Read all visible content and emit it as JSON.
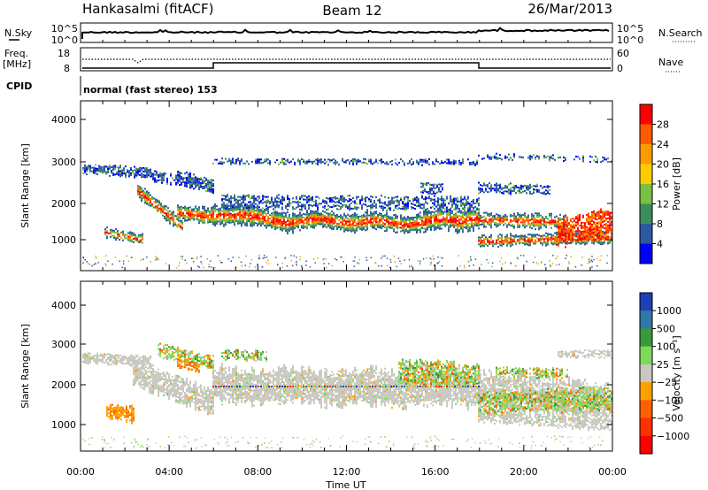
{
  "header": {
    "station": "Hankasalmi (fitACF)",
    "beam": "Beam 12",
    "date": "26/Mar/2013"
  },
  "noise_panel": {
    "left_label": "N.Sky",
    "right_label": "N.Search",
    "left_ticks": [
      "10^5",
      "10^0"
    ],
    "right_ticks": [
      "10^5",
      "10^0"
    ]
  },
  "freq_panel": {
    "left_label_top": "Freq.",
    "left_label_bottom": "[MHz]",
    "right_label": "Nave",
    "left_ticks": [
      "18",
      "8"
    ],
    "right_ticks": [
      "60",
      "0"
    ]
  },
  "cpid": {
    "label": "CPID",
    "text": "normal (fast stereo) 153"
  },
  "power_panel": {
    "ylabel": "Slant Range [km]",
    "cbar_label": "Power [dB]",
    "cbar_ticks": [
      "28",
      "24",
      "20",
      "16",
      "12",
      "8",
      "4"
    ],
    "cbar_colors": [
      "#ff0000",
      "#ff5a00",
      "#ff9a00",
      "#ffcc00",
      "#7ac143",
      "#3c8d5c",
      "#2c5aa0",
      "#0000ff"
    ]
  },
  "velocity_panel": {
    "ylabel": "Slant Range [km]",
    "cbar_label": "Velocity [m s⁻¹]",
    "cbar_ticks": [
      "1000",
      "500",
      "100",
      "25",
      "−25",
      "−100",
      "−500",
      "−1000"
    ],
    "cbar_colors": [
      "#1e40b4",
      "#2f78a8",
      "#3a9a3a",
      "#7ed957",
      "#c8c8c0",
      "#ffa000",
      "#ff6000",
      "#ff3000",
      "#ff0000"
    ]
  },
  "y_ticks": [
    "4000",
    "3000",
    "2000",
    "1000"
  ],
  "x_ticks": [
    "00:00",
    "04:00",
    "08:00",
    "12:00",
    "16:00",
    "20:00",
    "00:00"
  ],
  "xlabel": "Time UT",
  "chart_data": {
    "type": "heatmap",
    "x_range_hours": [
      0,
      24
    ],
    "y_range_km": [
      180,
      4500
    ],
    "cpid_value": 153,
    "power_levels_db": [
      4,
      8,
      12,
      16,
      20,
      24,
      28
    ],
    "velocity_levels_ms": [
      -1000,
      -500,
      -100,
      -25,
      25,
      100,
      500,
      1000
    ]
  }
}
